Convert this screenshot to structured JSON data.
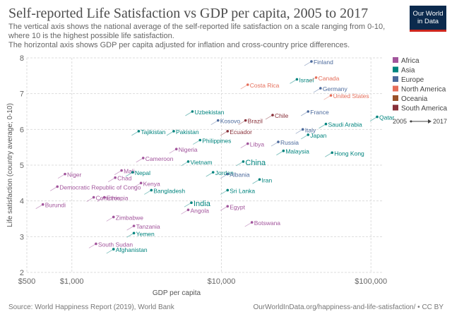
{
  "header": {
    "title": "Self-reported Life Satisfaction vs GDP per capita, 2005 to 2017",
    "subtitle_lines": [
      "The vertical axis shows the national average of the self-reported life satisfaction on a scale ranging from 0-10,",
      "where 10 is the highest possible life satisfaction.",
      "The horizontal axis shows GDP per capita adjusted for inflation and cross-country price differences."
    ]
  },
  "logo": {
    "line1": "Our World",
    "line2": "in Data"
  },
  "footer": {
    "source": "Source: World Happiness Report (2019), World Bank",
    "url": "OurWorldInData.org/happiness-and-life-satisfaction/ • CC BY"
  },
  "colors": {
    "Africa": "#a2559c",
    "Asia": "#00847e",
    "Europe": "#4c6a9c",
    "North America": "#e56e5a",
    "Oceania": "#9a5129",
    "South America": "#883039"
  },
  "chart_data": {
    "type": "scatter",
    "xlabel": "GDP per capita",
    "ylabel": "Life satisfaction (country average; 0-10)",
    "x_scale": "log",
    "xlim": [
      500,
      120000
    ],
    "ylim": [
      2,
      8
    ],
    "x_ticks": [
      500,
      1000,
      10000,
      100000
    ],
    "x_tick_labels": [
      "$500",
      "$1,000",
      "$10,000",
      "$100,000"
    ],
    "y_ticks": [
      2,
      3,
      4,
      5,
      6,
      7,
      8
    ],
    "y_tick_labels": [
      "2",
      "3",
      "4",
      "5",
      "6",
      "7",
      "8"
    ],
    "grid": true,
    "legend": {
      "placement": "right",
      "entries": [
        "Africa",
        "Asia",
        "Europe",
        "North America",
        "Oceania",
        "South America"
      ],
      "time_start": "2005",
      "time_end": "2017"
    },
    "points": [
      {
        "name": "Finland",
        "region": "Europe",
        "gdp": 40000,
        "ls": 7.9
      },
      {
        "name": "Israel",
        "region": "Asia",
        "gdp": 32000,
        "ls": 7.4
      },
      {
        "name": "Canada",
        "region": "North America",
        "gdp": 43000,
        "ls": 7.45
      },
      {
        "name": "Costa Rica",
        "region": "North America",
        "gdp": 15000,
        "ls": 7.25
      },
      {
        "name": "Germany",
        "region": "Europe",
        "gdp": 46000,
        "ls": 7.15
      },
      {
        "name": "United States",
        "region": "North America",
        "gdp": 54000,
        "ls": 6.95
      },
      {
        "name": "Uzbekistan",
        "region": "Asia",
        "gdp": 6400,
        "ls": 6.5
      },
      {
        "name": "Chile",
        "region": "South America",
        "gdp": 22000,
        "ls": 6.4
      },
      {
        "name": "France",
        "region": "Europe",
        "gdp": 38000,
        "ls": 6.5
      },
      {
        "name": "Kosovo",
        "region": "Europe",
        "gdp": 9500,
        "ls": 6.25
      },
      {
        "name": "Brazil",
        "region": "South America",
        "gdp": 14500,
        "ls": 6.25
      },
      {
        "name": "Qatar",
        "region": "Asia",
        "gdp": 110000,
        "ls": 6.35
      },
      {
        "name": "Saudi Arabia",
        "region": "Asia",
        "gdp": 50000,
        "ls": 6.15
      },
      {
        "name": "Tajikistan",
        "region": "Asia",
        "gdp": 2800,
        "ls": 5.95
      },
      {
        "name": "Pakistan",
        "region": "Asia",
        "gdp": 4800,
        "ls": 5.95
      },
      {
        "name": "Ecuador",
        "region": "South America",
        "gdp": 11000,
        "ls": 5.95
      },
      {
        "name": "Philippines",
        "region": "Asia",
        "gdp": 7200,
        "ls": 5.7
      },
      {
        "name": "Libya",
        "region": "Africa",
        "gdp": 15000,
        "ls": 5.6
      },
      {
        "name": "Russia",
        "region": "Europe",
        "gdp": 24000,
        "ls": 5.65
      },
      {
        "name": "Japan",
        "region": "Asia",
        "gdp": 38000,
        "ls": 5.85
      },
      {
        "name": "Italy",
        "region": "Europe",
        "gdp": 35000,
        "ls": 6.0
      },
      {
        "name": "Nigeria",
        "region": "Africa",
        "gdp": 5000,
        "ls": 5.45
      },
      {
        "name": "Cameroon",
        "region": "Africa",
        "gdp": 3000,
        "ls": 5.2
      },
      {
        "name": "Vietnam",
        "region": "Asia",
        "gdp": 6000,
        "ls": 5.1
      },
      {
        "name": "China",
        "region": "Asia",
        "gdp": 14000,
        "ls": 5.1
      },
      {
        "name": "Malaysia",
        "region": "Asia",
        "gdp": 26000,
        "ls": 5.4
      },
      {
        "name": "Hong Kong",
        "region": "Asia",
        "gdp": 55000,
        "ls": 5.35
      },
      {
        "name": "Niger",
        "region": "Africa",
        "gdp": 900,
        "ls": 4.75
      },
      {
        "name": "Chad",
        "region": "Africa",
        "gdp": 1950,
        "ls": 4.65
      },
      {
        "name": "Mali",
        "region": "Africa",
        "gdp": 2150,
        "ls": 4.85
      },
      {
        "name": "Nepal",
        "region": "Asia",
        "gdp": 2550,
        "ls": 4.8
      },
      {
        "name": "Jordan",
        "region": "Asia",
        "gdp": 8800,
        "ls": 4.8
      },
      {
        "name": "Albania",
        "region": "Europe",
        "gdp": 11000,
        "ls": 4.75
      },
      {
        "name": "Iran",
        "region": "Asia",
        "gdp": 18000,
        "ls": 4.6
      },
      {
        "name": "Democratic Republic of Congo",
        "region": "Africa",
        "gdp": 800,
        "ls": 4.4
      },
      {
        "name": "Kenya",
        "region": "Africa",
        "gdp": 2900,
        "ls": 4.5
      },
      {
        "name": "Bangladesh",
        "region": "Asia",
        "gdp": 3400,
        "ls": 4.3
      },
      {
        "name": "Sri Lanka",
        "region": "Asia",
        "gdp": 11000,
        "ls": 4.3
      },
      {
        "name": "Burundi",
        "region": "Africa",
        "gdp": 640,
        "ls": 3.9
      },
      {
        "name": "Comoros",
        "region": "Africa",
        "gdp": 1400,
        "ls": 4.1
      },
      {
        "name": "Ethiopia",
        "region": "Africa",
        "gdp": 1650,
        "ls": 4.1
      },
      {
        "name": "India",
        "region": "Asia",
        "gdp": 6300,
        "ls": 3.95
      },
      {
        "name": "Angola",
        "region": "Africa",
        "gdp": 6000,
        "ls": 3.75
      },
      {
        "name": "Egypt",
        "region": "Africa",
        "gdp": 11000,
        "ls": 3.85
      },
      {
        "name": "Zimbabwe",
        "region": "Africa",
        "gdp": 1900,
        "ls": 3.55
      },
      {
        "name": "Tanzania",
        "region": "Africa",
        "gdp": 2600,
        "ls": 3.3
      },
      {
        "name": "Botswana",
        "region": "Africa",
        "gdp": 16000,
        "ls": 3.4
      },
      {
        "name": "Yemen",
        "region": "Asia",
        "gdp": 2600,
        "ls": 3.1
      },
      {
        "name": "South Sudan",
        "region": "Africa",
        "gdp": 1450,
        "ls": 2.8
      },
      {
        "name": "Afghanistan",
        "region": "Asia",
        "gdp": 1900,
        "ls": 2.65
      }
    ]
  }
}
